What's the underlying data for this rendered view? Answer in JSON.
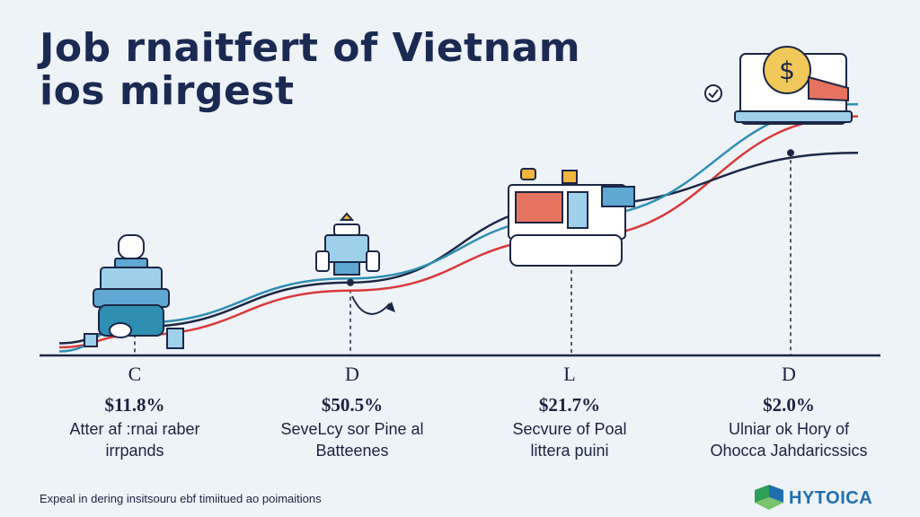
{
  "title_lines": [
    "Job rnaitfert of Vietnam",
    "ios mirgest"
  ],
  "columns": [
    {
      "letter": "C",
      "value": "$11.8%",
      "desc_lines": [
        "Atter af :rnai raber",
        "irrpands"
      ]
    },
    {
      "letter": "D",
      "value": "$50.5%",
      "desc_lines": [
        "SeveLcy sor Pine al",
        "Batteenes"
      ]
    },
    {
      "letter": "L",
      "value": "$21.7%",
      "desc_lines": [
        "Secvure of Poal",
        "littera puini"
      ]
    },
    {
      "letter": "D",
      "value": "$2.0%",
      "desc_lines": [
        "Ulniar ok Hory of",
        "Ohocca Jahdaricssics"
      ]
    }
  ],
  "footnote": "Expeal in dering insitsouru ebf timiitued ao poimaitions",
  "brand": "HYTOICA",
  "colors": {
    "background": "#eef3f8",
    "series_red": "#d8393a",
    "series_teal": "#2f8fb3",
    "series_navy": "#1c2746",
    "title": "#1b2a52",
    "brand_green": "#2e9d5a",
    "brand_blue": "#1f6fae"
  },
  "icons": [
    "robot-icon",
    "ship-icon",
    "machinery-icon",
    "money-laptop-icon",
    "check-icon",
    "arrow-icon"
  ],
  "chart_data": {
    "type": "line",
    "x": [
      0,
      1,
      2,
      3,
      4
    ],
    "categories": [
      "",
      "C",
      "D",
      "L",
      "D"
    ],
    "series": [
      {
        "values": [
          0.2,
          0.5,
          1.6,
          2.9,
          5.9
        ]
      },
      {
        "values": [
          0.3,
          0.7,
          1.8,
          3.7,
          5.0
        ]
      },
      {
        "values": [
          0.1,
          0.8,
          1.9,
          3.4,
          6.2
        ]
      }
    ],
    "ylim": [
      0,
      7
    ],
    "grid": false,
    "legend": "none"
  }
}
